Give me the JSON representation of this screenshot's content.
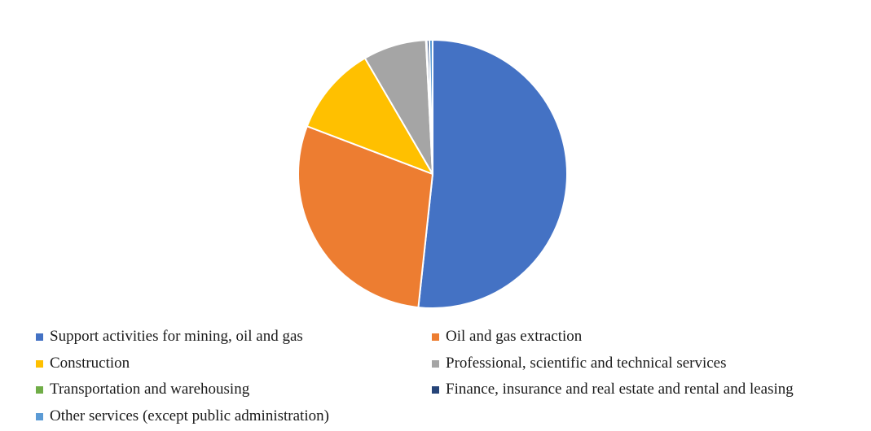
{
  "chart_data": {
    "type": "pie",
    "title": "",
    "legend_placement": "bottom",
    "start_angle_deg": 0,
    "direction": "clockwise",
    "slices": [
      {
        "label": "Support activities for mining, oil and gas",
        "value": 51.7,
        "color": "#4472C4"
      },
      {
        "label": "Oil and gas extraction",
        "value": 29.1,
        "color": "#ED7D31"
      },
      {
        "label": "Construction",
        "value": 10.8,
        "color": "#FFC000"
      },
      {
        "label": "Professional, scientific and technical services",
        "value": 7.6,
        "color": "#A5A5A5"
      },
      {
        "label": "Transportation and warehousing",
        "value": 0.1,
        "color": "#70AD47"
      },
      {
        "label": "Finance, insurance and real estate and rental and leasing",
        "value": 0.3,
        "color": "#264478"
      },
      {
        "label": "Other services (except public administration)",
        "value": 0.4,
        "color": "#5B9BD5"
      }
    ]
  }
}
